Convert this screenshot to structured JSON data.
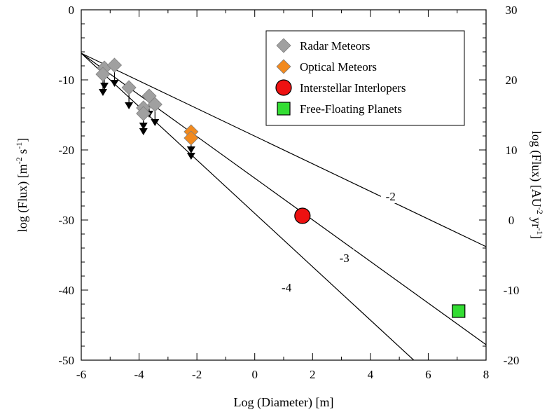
{
  "chart_data": {
    "type": "scatter",
    "x_axis": {
      "label": "Log (Diameter) [m]",
      "range": [
        -6,
        8
      ],
      "ticks": [
        -6,
        -4,
        -2,
        0,
        2,
        4,
        6,
        8
      ],
      "tick_labels": [
        "-6",
        "-4",
        "-2",
        "0",
        "2",
        "4",
        "6",
        "8"
      ]
    },
    "y_axis_left": {
      "label_main": "log (Flux) [m",
      "label_sup1": "-2",
      "label_mid": " s",
      "label_sup2": "-1",
      "label_end": "]",
      "range": [
        -50,
        0
      ],
      "ticks": [
        0,
        -10,
        -20,
        -30,
        -40,
        -50
      ],
      "tick_labels": [
        "0",
        "-10",
        "-20",
        "-30",
        "-40",
        "-50"
      ]
    },
    "y_axis_right": {
      "label_main": "log (Flux) [AU",
      "label_sup1": "-2",
      "label_mid": " yr",
      "label_sup2": "-1",
      "label_end": "]",
      "range": [
        -20,
        30
      ],
      "ticks": [
        30,
        20,
        10,
        0,
        -10,
        -20
      ],
      "tick_labels": [
        "30",
        "20",
        "10",
        "0",
        "-10",
        "-20"
      ]
    },
    "grid": false,
    "legend_position": "top-right",
    "power_laws": [
      {
        "label": "-2",
        "slope": -2,
        "points": [
          [
            -6,
            -6.2
          ],
          [
            8,
            -33.8
          ]
        ],
        "label_at": [
          4.7,
          -26.6
        ]
      },
      {
        "label": "-3",
        "slope": -3,
        "points": [
          [
            -6,
            -6.2
          ],
          [
            8,
            -47.8
          ]
        ],
        "label_at": [
          3.1,
          -35.4
        ]
      },
      {
        "label": "-4",
        "slope": -4,
        "points": [
          [
            -6,
            -6.2
          ],
          [
            5.5,
            -50
          ]
        ],
        "label_at": [
          1.1,
          -39.6
        ]
      }
    ],
    "series": [
      {
        "name": "Radar Meteors",
        "marker": "diamond",
        "color": "#a0a0a0",
        "upper_limits": true,
        "points": [
          {
            "x": -5.2,
            "y": -8.3
          },
          {
            "x": -5.25,
            "y": -9.2
          },
          {
            "x": -4.85,
            "y": -7.9
          },
          {
            "x": -4.35,
            "y": -11.1
          },
          {
            "x": -3.85,
            "y": -14.0
          },
          {
            "x": -3.85,
            "y": -14.8
          },
          {
            "x": -3.65,
            "y": -12.3
          },
          {
            "x": -3.45,
            "y": -13.5
          }
        ]
      },
      {
        "name": "Optical Meteors",
        "marker": "diamond",
        "color": "#f28a1e",
        "upper_limits": true,
        "points": [
          {
            "x": -2.2,
            "y": -17.4
          },
          {
            "x": -2.2,
            "y": -18.3
          }
        ]
      },
      {
        "name": "Interstellar Interlopers",
        "marker": "circle",
        "color": "#ee1111",
        "upper_limits": false,
        "points": [
          {
            "x": 1.65,
            "y": -29.4
          }
        ]
      },
      {
        "name": "Free-Floating Planets",
        "marker": "square",
        "color": "#33dd33",
        "upper_limits": false,
        "points": [
          {
            "x": 7.05,
            "y": -43.0
          }
        ]
      }
    ]
  }
}
